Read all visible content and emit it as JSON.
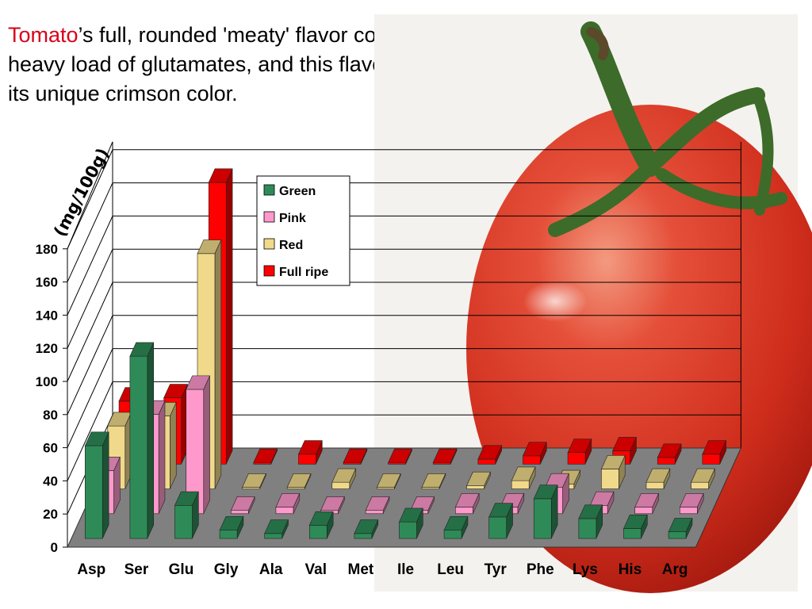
{
  "headline": {
    "highlight": "Tomato",
    "rest": "’s full, rounded 'meaty' flavor comes from its heavy load of glutamates, and this flavor is reinforced by its unique crimson color."
  },
  "colors": {
    "green": "#2e8b57",
    "pink": "#ff99cc",
    "red": "#f0d98a",
    "full_ripe": "#ff0000",
    "floor": "#808080",
    "tomato": "#d8331f"
  },
  "image": {
    "subject": "tomato-with-green-stem"
  },
  "chart_data": {
    "type": "bar",
    "style": "3d-clustered-depth",
    "unit_label": "(mg/100g)",
    "ylim": [
      0,
      180
    ],
    "yticks": [
      0,
      20,
      40,
      60,
      80,
      100,
      120,
      140,
      160,
      180
    ],
    "grid": true,
    "legend_position": "top-center",
    "categories": [
      "Asp",
      "Ser",
      "Glu",
      "Gly",
      "Ala",
      "Val",
      "Met",
      "Ile",
      "Leu",
      "Tyr",
      "Phe",
      "Lys",
      "His",
      "Arg"
    ],
    "series": [
      {
        "name": "Green",
        "color": "#2e8b57",
        "values": [
          56,
          110,
          20,
          5,
          3,
          8,
          3,
          10,
          5,
          13,
          24,
          12,
          6,
          4
        ]
      },
      {
        "name": "Pink",
        "color": "#ff99cc",
        "values": [
          26,
          60,
          75,
          2,
          4,
          2,
          2,
          2,
          4,
          4,
          16,
          5,
          4,
          4
        ]
      },
      {
        "name": "Red",
        "color": "#f0d98a",
        "values": [
          38,
          44,
          142,
          1,
          1,
          4,
          1,
          1,
          2,
          5,
          3,
          12,
          4,
          4
        ]
      },
      {
        "name": "Full ripe",
        "color": "#ff0000",
        "values": [
          38,
          40,
          170,
          1,
          6,
          1,
          1,
          1,
          3,
          5,
          7,
          8,
          4,
          6
        ]
      }
    ]
  }
}
